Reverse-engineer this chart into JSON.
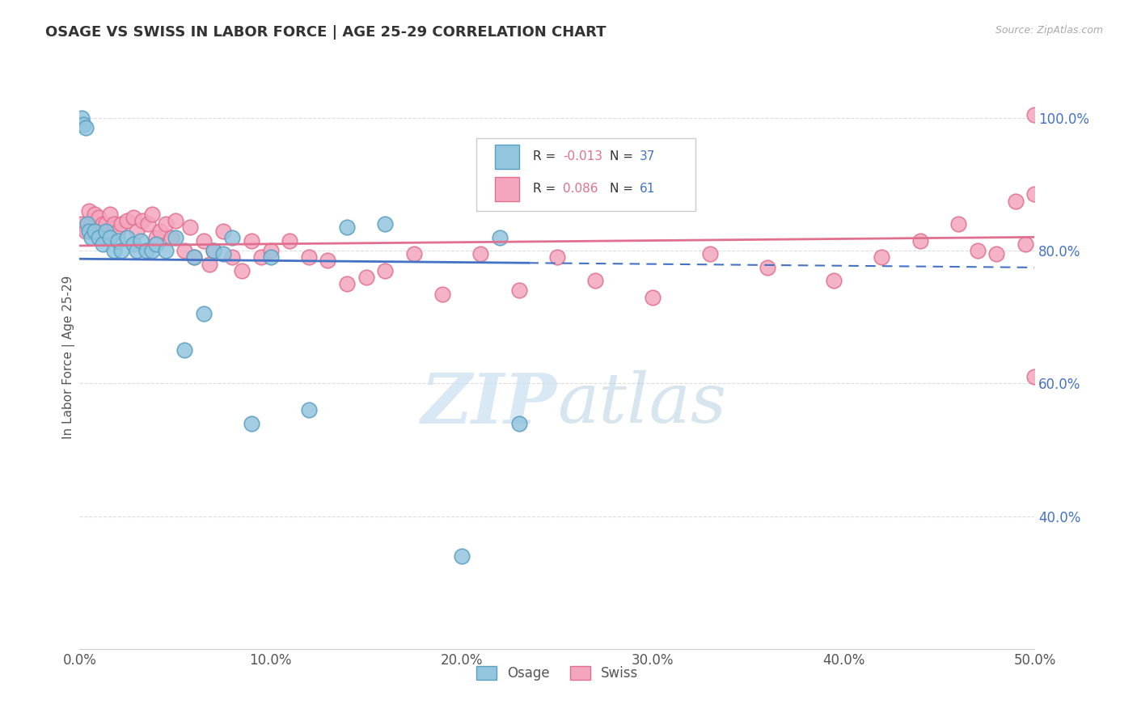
{
  "title": "OSAGE VS SWISS IN LABOR FORCE | AGE 25-29 CORRELATION CHART",
  "source_text": "Source: ZipAtlas.com",
  "xlabel": "",
  "ylabel": "In Labor Force | Age 25-29",
  "xlim": [
    0.0,
    0.5
  ],
  "ylim": [
    0.2,
    1.08
  ],
  "xtick_labels": [
    "0.0%",
    "10.0%",
    "20.0%",
    "30.0%",
    "40.0%",
    "50.0%"
  ],
  "xtick_vals": [
    0.0,
    0.1,
    0.2,
    0.3,
    0.4,
    0.5
  ],
  "ytick_labels": [
    "40.0%",
    "60.0%",
    "80.0%",
    "100.0%"
  ],
  "ytick_vals": [
    0.4,
    0.6,
    0.8,
    1.0
  ],
  "osage_color": "#92c5de",
  "osage_edge": "#5a9fc0",
  "swiss_color": "#f4a6be",
  "swiss_edge": "#e07090",
  "osage_R": -0.013,
  "osage_N": 37,
  "swiss_R": 0.086,
  "swiss_N": 61,
  "osage_x": [
    0.001,
    0.002,
    0.003,
    0.004,
    0.005,
    0.006,
    0.008,
    0.01,
    0.012,
    0.014,
    0.016,
    0.018,
    0.02,
    0.022,
    0.025,
    0.028,
    0.03,
    0.032,
    0.035,
    0.038,
    0.04,
    0.045,
    0.05,
    0.055,
    0.06,
    0.065,
    0.07,
    0.075,
    0.08,
    0.09,
    0.1,
    0.12,
    0.14,
    0.16,
    0.2,
    0.22,
    0.23
  ],
  "osage_y": [
    1.0,
    0.99,
    0.985,
    0.84,
    0.83,
    0.82,
    0.83,
    0.82,
    0.81,
    0.83,
    0.82,
    0.8,
    0.815,
    0.8,
    0.82,
    0.81,
    0.8,
    0.815,
    0.8,
    0.8,
    0.81,
    0.8,
    0.82,
    0.65,
    0.79,
    0.705,
    0.8,
    0.795,
    0.82,
    0.54,
    0.79,
    0.56,
    0.835,
    0.84,
    0.34,
    0.82,
    0.54
  ],
  "swiss_x": [
    0.001,
    0.003,
    0.005,
    0.006,
    0.008,
    0.01,
    0.012,
    0.014,
    0.016,
    0.018,
    0.02,
    0.022,
    0.025,
    0.028,
    0.03,
    0.033,
    0.036,
    0.038,
    0.04,
    0.042,
    0.045,
    0.048,
    0.05,
    0.055,
    0.058,
    0.06,
    0.065,
    0.068,
    0.07,
    0.075,
    0.08,
    0.085,
    0.09,
    0.095,
    0.1,
    0.11,
    0.12,
    0.13,
    0.14,
    0.15,
    0.16,
    0.175,
    0.19,
    0.21,
    0.23,
    0.25,
    0.27,
    0.3,
    0.33,
    0.36,
    0.395,
    0.42,
    0.44,
    0.46,
    0.47,
    0.48,
    0.49,
    0.495,
    0.5,
    0.5,
    0.5
  ],
  "swiss_y": [
    0.84,
    0.83,
    0.86,
    0.84,
    0.855,
    0.85,
    0.84,
    0.84,
    0.855,
    0.84,
    0.83,
    0.84,
    0.845,
    0.85,
    0.83,
    0.845,
    0.84,
    0.855,
    0.82,
    0.83,
    0.84,
    0.82,
    0.845,
    0.8,
    0.835,
    0.79,
    0.815,
    0.78,
    0.8,
    0.83,
    0.79,
    0.77,
    0.815,
    0.79,
    0.8,
    0.815,
    0.79,
    0.785,
    0.75,
    0.76,
    0.77,
    0.795,
    0.735,
    0.795,
    0.74,
    0.79,
    0.755,
    0.73,
    0.795,
    0.775,
    0.755,
    0.79,
    0.815,
    0.84,
    0.8,
    0.795,
    0.875,
    0.81,
    0.885,
    0.61,
    1.005
  ],
  "watermark_zip": "ZIP",
  "watermark_atlas": "atlas",
  "background_color": "#ffffff",
  "grid_color": "#dddddd",
  "trend_osage_color": "#4472c4",
  "trend_swiss_color": "#e07090",
  "legend_R_color": "#e07090",
  "legend_N_color": "#4472c4"
}
